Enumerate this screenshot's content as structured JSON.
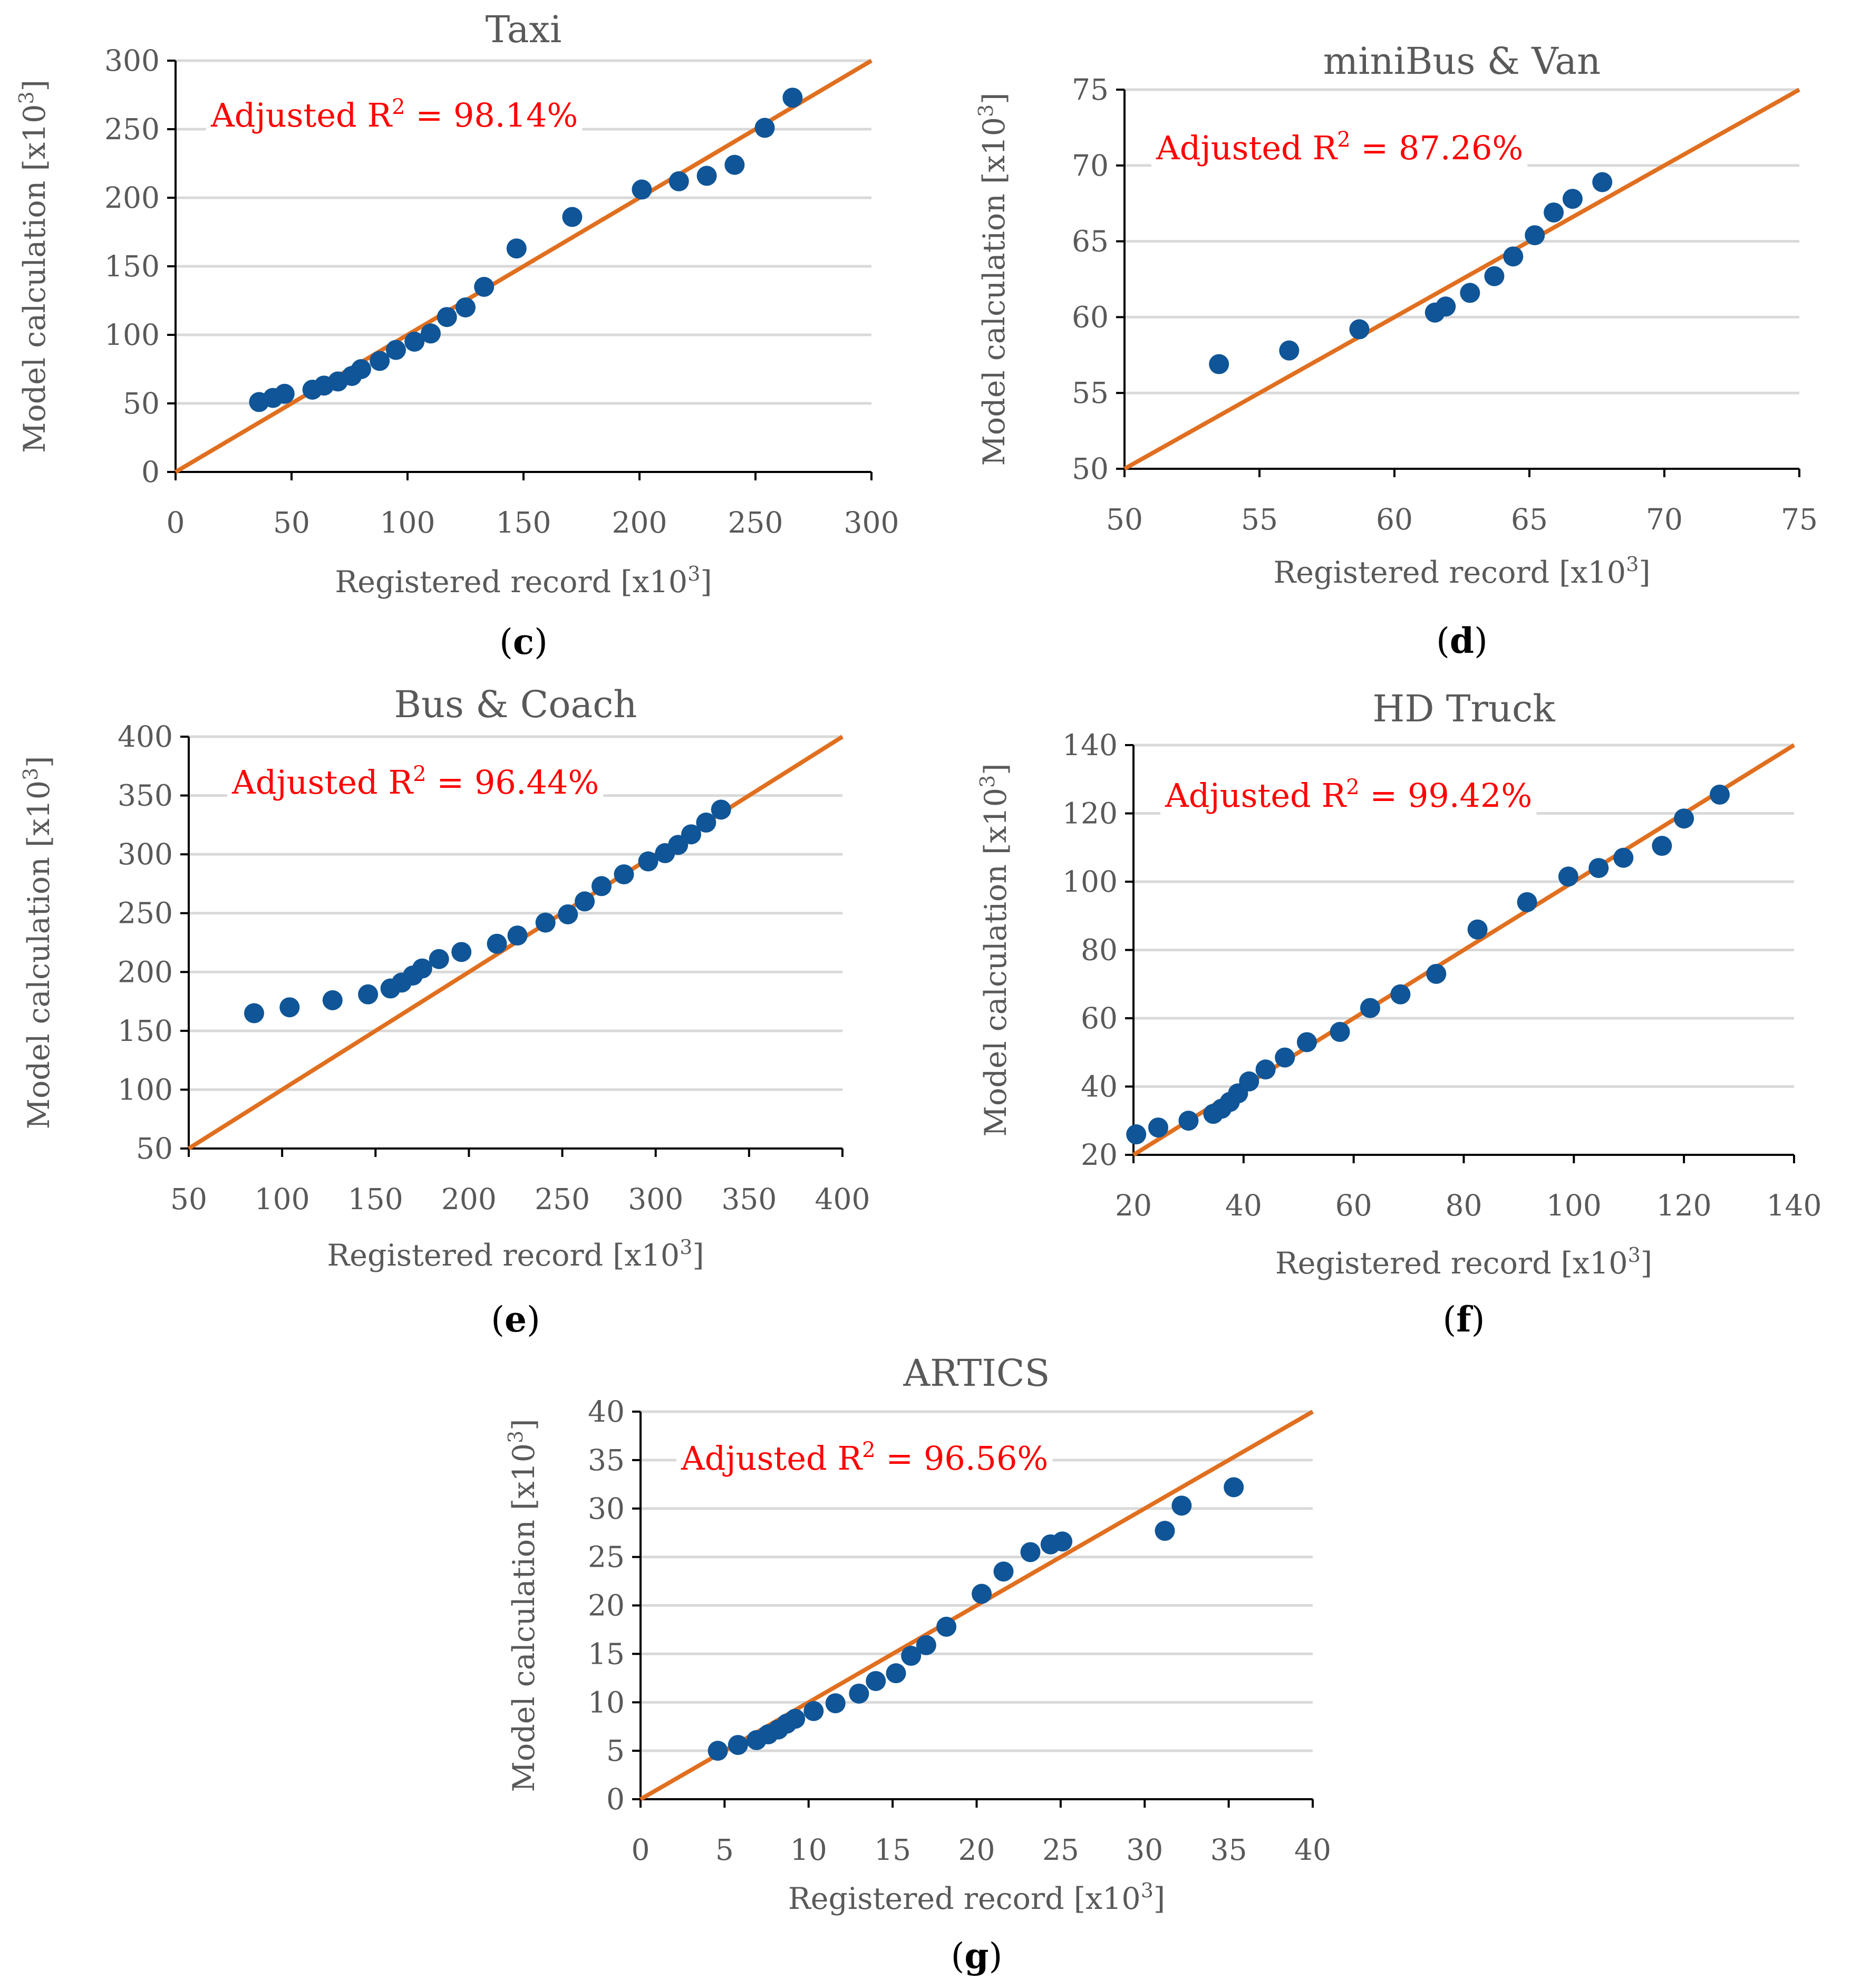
{
  "colors": {
    "point": "#0f5597",
    "fit_line": "#e06f1f",
    "annotation": "#ff0000",
    "axis_text": "#595959",
    "grid": "#d9d9d9"
  },
  "chart_data": [
    {
      "id": "c",
      "type": "scatter",
      "title": "Taxi",
      "caption": "c",
      "xlabel": "Registered record [x10",
      "ylabel": "Model calculation [x10",
      "unit_sup": "3",
      "annotation": {
        "prefix": "Adjusted R",
        "sup": "2",
        "suffix": " = 98.14%"
      },
      "xlim": [
        0,
        300
      ],
      "ylim": [
        0,
        300
      ],
      "xticks": [
        0,
        50,
        100,
        150,
        200,
        250,
        300
      ],
      "yticks": [
        0,
        50,
        100,
        150,
        200,
        250,
        300
      ],
      "fit_line": [
        [
          0,
          0
        ],
        [
          300,
          300
        ]
      ],
      "x": [
        36,
        42,
        47,
        59,
        64,
        70,
        76,
        80,
        88,
        95,
        103,
        110,
        117,
        125,
        133,
        147,
        171,
        201,
        217,
        229,
        241,
        254,
        266
      ],
      "y": [
        51,
        54,
        57,
        60,
        63,
        66,
        70,
        75,
        81,
        89,
        95,
        101,
        113,
        120,
        135,
        163,
        186,
        206,
        212,
        216,
        224,
        251,
        273
      ]
    },
    {
      "id": "d",
      "type": "scatter",
      "title": "miniBus & Van",
      "caption": "d",
      "xlabel": "Registered record [x10",
      "ylabel": "Model calculation [x10",
      "unit_sup": "3",
      "annotation": {
        "prefix": "Adjusted R",
        "sup": "2",
        "suffix": " = 87.26%"
      },
      "xlim": [
        50,
        75
      ],
      "ylim": [
        50,
        75
      ],
      "xticks": [
        50,
        55,
        60,
        65,
        70,
        75
      ],
      "yticks": [
        50,
        55,
        60,
        65,
        70,
        75
      ],
      "fit_line": [
        [
          50,
          50
        ],
        [
          75,
          75
        ]
      ],
      "x": [
        53.5,
        56.1,
        58.7,
        61.5,
        61.9,
        62.8,
        63.7,
        64.4,
        65.2,
        65.9,
        66.6,
        67.7
      ],
      "y": [
        56.9,
        57.8,
        59.2,
        60.3,
        60.7,
        61.6,
        62.7,
        64.0,
        65.4,
        66.9,
        67.8,
        68.9
      ]
    },
    {
      "id": "e",
      "type": "scatter",
      "title": "Bus & Coach",
      "caption": "e",
      "xlabel": "Registered record [x10",
      "ylabel": "Model calculation [x10",
      "unit_sup": "3",
      "annotation": {
        "prefix": "Adjusted R",
        "sup": "2",
        "suffix": " = 96.44%"
      },
      "xlim": [
        50,
        400
      ],
      "ylim": [
        50,
        400
      ],
      "xticks": [
        50,
        100,
        150,
        200,
        250,
        300,
        350,
        400
      ],
      "yticks": [
        50,
        100,
        150,
        200,
        250,
        300,
        350,
        400
      ],
      "fit_line": [
        [
          50,
          50
        ],
        [
          400,
          400
        ]
      ],
      "x": [
        85,
        104,
        127,
        146,
        158,
        164,
        170,
        175,
        184,
        196,
        215,
        226,
        241,
        253,
        262,
        271,
        283,
        296,
        305,
        312,
        319,
        327,
        335
      ],
      "y": [
        165,
        170,
        176,
        181,
        186,
        191,
        197,
        203,
        211,
        217,
        224,
        231,
        242,
        249,
        260,
        273,
        283,
        294,
        301,
        308,
        317,
        327,
        338
      ]
    },
    {
      "id": "f",
      "type": "scatter",
      "title": "HD Truck",
      "caption": "f",
      "xlabel": "Registered record [x10",
      "ylabel": "Model calculation [x10",
      "unit_sup": "3",
      "annotation": {
        "prefix": "Adjusted R",
        "sup": "2",
        "suffix": " = 99.42%"
      },
      "xlim": [
        20,
        140
      ],
      "ylim": [
        20,
        140
      ],
      "xticks": [
        20,
        40,
        60,
        80,
        100,
        120,
        140
      ],
      "yticks": [
        20,
        40,
        60,
        80,
        100,
        120,
        140
      ],
      "fit_line": [
        [
          20,
          20
        ],
        [
          140,
          140
        ]
      ],
      "x": [
        20.5,
        24.5,
        30,
        34.5,
        36,
        37.5,
        39,
        41,
        44,
        47.5,
        51.5,
        57.5,
        63,
        68.5,
        75,
        82.5,
        91.5,
        99,
        104.5,
        109,
        116,
        120,
        126.5
      ],
      "y": [
        26,
        28,
        30,
        32,
        33.5,
        35.5,
        38,
        41.5,
        45,
        48.5,
        53,
        56,
        63,
        67,
        73,
        86,
        94,
        101.5,
        104,
        107,
        110.5,
        118.5,
        125.5
      ]
    },
    {
      "id": "g",
      "type": "scatter",
      "title": "ARTICS",
      "caption": "g",
      "xlabel": "Registered record [x10",
      "ylabel": "Model calculation [x10",
      "unit_sup": "3",
      "annotation": {
        "prefix": "Adjusted R",
        "sup": "2",
        "suffix": " = 96.56%"
      },
      "xlim": [
        0,
        40
      ],
      "ylim": [
        0,
        40
      ],
      "xticks": [
        0,
        5,
        10,
        15,
        20,
        25,
        30,
        35,
        40
      ],
      "yticks": [
        0,
        5,
        10,
        15,
        20,
        25,
        30,
        35,
        40
      ],
      "fit_line": [
        [
          0,
          0
        ],
        [
          40,
          40
        ]
      ],
      "x": [
        4.6,
        5.8,
        6.9,
        7.6,
        8.2,
        8.7,
        9.2,
        10.3,
        11.6,
        13.0,
        14.0,
        15.2,
        16.1,
        17.0,
        18.2,
        20.3,
        21.6,
        23.2,
        24.4,
        25.1,
        31.2,
        32.2,
        35.3
      ],
      "y": [
        5.0,
        5.6,
        6.1,
        6.7,
        7.2,
        7.8,
        8.3,
        9.1,
        9.9,
        10.9,
        12.2,
        13.0,
        14.8,
        15.9,
        17.8,
        21.2,
        23.5,
        25.5,
        26.3,
        26.6,
        27.7,
        30.3,
        32.2
      ]
    }
  ]
}
